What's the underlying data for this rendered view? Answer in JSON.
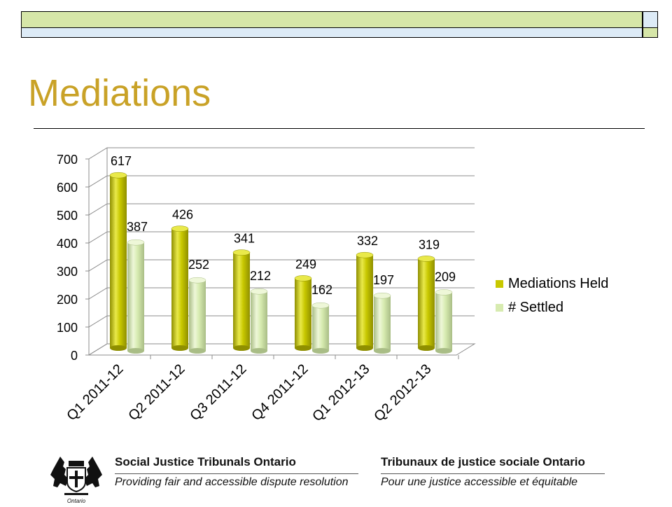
{
  "slide": {
    "title": "Mediations",
    "colors": {
      "title": "#C9A227",
      "bar_band": "#D6E6A8",
      "held": "#C8C800",
      "settled": "#D7EBB0"
    }
  },
  "chart_data": {
    "type": "bar",
    "categories": [
      "Q1 2011-12",
      "Q2 2011-12",
      "Q3 2011-12",
      "Q4 2011-12",
      "Q1 2012-13",
      "Q2 2012-13"
    ],
    "series": [
      {
        "name": "Mediations Held",
        "values": [
          617,
          426,
          341,
          249,
          332,
          319
        ]
      },
      {
        "name": "# Settled",
        "values": [
          387,
          252,
          212,
          162,
          197,
          209
        ]
      }
    ],
    "ylim": [
      0,
      700
    ],
    "yticks": [
      "0",
      "100",
      "200",
      "300",
      "400",
      "500",
      "600",
      "700"
    ],
    "grid": true,
    "legend_position": "right",
    "style": "3d-cylinder"
  },
  "footer": {
    "org_en": "Social Justice Tribunals Ontario",
    "tagline_en": "Providing fair and accessible dispute resolution",
    "org_fr": "Tribunaux de justice sociale Ontario",
    "tagline_fr": "Pour une justice accessible et équitable",
    "logo_text": "Ontario"
  }
}
